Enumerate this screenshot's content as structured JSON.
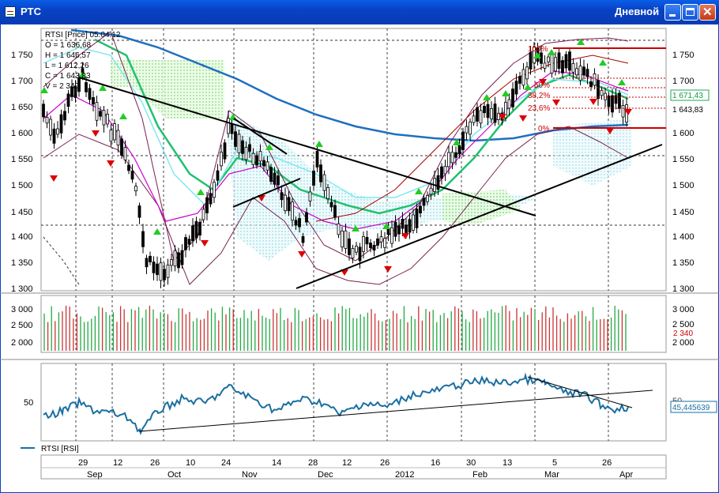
{
  "window": {
    "title": "PTC",
    "timeframe": "Дневной"
  },
  "ohlc": {
    "header": "RTSI [Price] 05.04.12",
    "open": "O = 1 636,68",
    "high": "H = 1 646,57",
    "low": "L = 1 612,26",
    "close": "C = 1 643,83",
    "volume": "V = 2 340"
  },
  "price_axis": [
    "1 750",
    "1 700",
    "1 650",
    "1 600",
    "1 550",
    "1 500",
    "1 450",
    "1 400",
    "1 350",
    "1 300"
  ],
  "price_badges": {
    "level": "1 671,43",
    "last": "1 643,83"
  },
  "fib_labels": [
    "100%",
    "50%",
    "38,2%",
    "23,6%",
    "0%"
  ],
  "volume_axis": [
    "3 000",
    "2 500",
    "2 000"
  ],
  "volume_badge": "2 340",
  "rsi": {
    "legend": "RTSI [RSI]",
    "axis_label": "50",
    "value": "45,445639"
  },
  "time_axis": {
    "days": [
      "29",
      "12",
      "26",
      "10",
      "24",
      "14",
      "28",
      "12",
      "26",
      "16",
      "30",
      "13",
      "5",
      "26"
    ],
    "months": [
      "Sep",
      "Oct",
      "Nov",
      "Dec",
      "2012",
      "Feb",
      "Mar",
      "Apr"
    ]
  },
  "colors": {
    "title_bar": "#0842c4",
    "up_arrow": "#22cc22",
    "down_arrow": "#dd0000",
    "ma_blue": "#1e6fc0",
    "ma_green": "#22c070",
    "rsi_line": "#1a6fa0",
    "fib_red": "#cc0000"
  }
}
